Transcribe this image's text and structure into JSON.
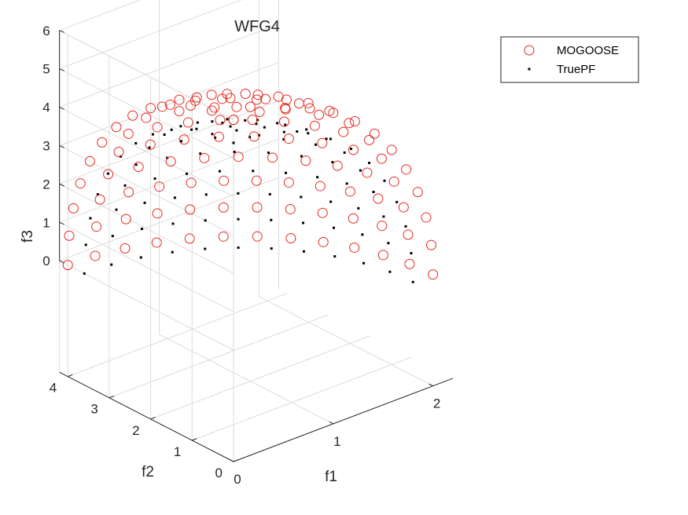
{
  "chart_data": {
    "type": "scatter3d",
    "title": "WFG4",
    "xlabel": "f1",
    "ylabel": "f2",
    "zlabel": "f3",
    "xlim": [
      0,
      2.2
    ],
    "ylim": [
      0,
      4.2
    ],
    "zlim": [
      0,
      6
    ],
    "xticks": [
      "0",
      "1",
      "2"
    ],
    "yticks": [
      "0",
      "1",
      "2",
      "3",
      "4"
    ],
    "zticks": [
      "0",
      "1",
      "2",
      "3",
      "4",
      "5",
      "6"
    ],
    "grid": true,
    "legend_position": "top-right",
    "colors": {
      "MOGOOSE": "#e8281e",
      "TruePF": "#000000"
    },
    "series": [
      {
        "name": "MOGOOSE",
        "marker": "open-circle",
        "points": "sampled on ellipsoid f1²/4 + f2²/16 + f3²/36 = 1 (approx. 160 points)"
      },
      {
        "name": "TruePF",
        "marker": "dot",
        "points": "sampled on ellipsoid f1²/4 + f2²/16 + f3²/36 = 0.81 (approx. 150 points)"
      }
    ],
    "mogoose_scale": 1.0,
    "truepf_scale": 0.9,
    "axes_max": [
      2,
      4,
      6
    ]
  }
}
